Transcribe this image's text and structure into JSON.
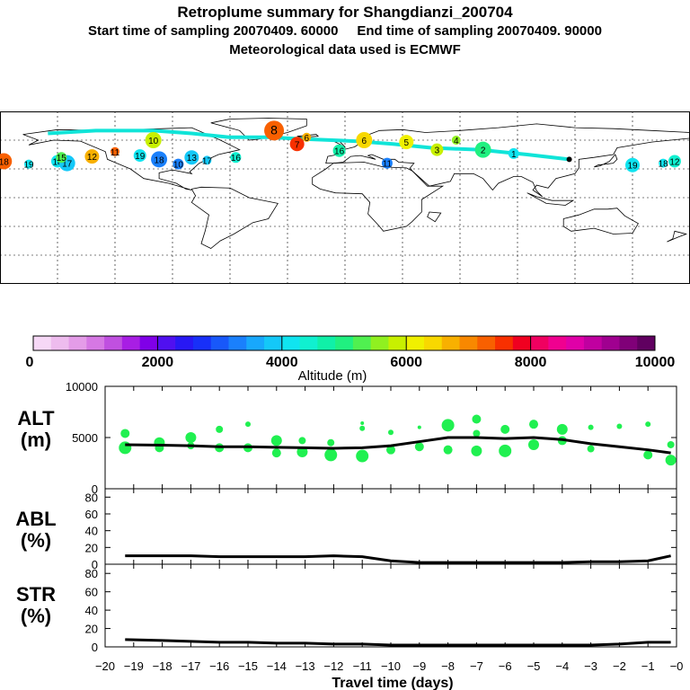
{
  "header": {
    "title": "Retroplume summary for Shangdianzi_200704",
    "subtitle": "Start time of sampling 20070409. 60000     End time of sampling 20070409. 90000",
    "met_line": "Meteorological data used is ECMWF"
  },
  "colorbar": {
    "tick_labels": [
      "0",
      "2000",
      "4000",
      "6000",
      "8000",
      "10000"
    ],
    "label": "Altitude (m)",
    "colors": [
      "#f6d8f6",
      "#eebcee",
      "#e49ce8",
      "#d678e4",
      "#c050e0",
      "#a81ee4",
      "#8000e8",
      "#5010f0",
      "#2818f4",
      "#1830f8",
      "#1858fa",
      "#1a80fc",
      "#18a8fc",
      "#14c8f8",
      "#10e4f0",
      "#10f0d0",
      "#10f0a8",
      "#20f080",
      "#50f050",
      "#90f020",
      "#c8f000",
      "#f0f000",
      "#f8d800",
      "#f8b000",
      "#f88800",
      "#f86000",
      "#f83000",
      "#f00020",
      "#f00060",
      "#f00090",
      "#e000a8",
      "#c000a0",
      "#a00090",
      "#800078",
      "#600060"
    ]
  },
  "panels": {
    "alt_label": "ALT\n(m)",
    "abl_label": "ABL\n(%)",
    "str_label": "STR\n(%)"
  },
  "chart_data": [
    {
      "type": "scatter",
      "title": "ALT",
      "ylabel": "ALT (m)",
      "ylim": [
        0,
        10000
      ],
      "yticks": [
        "10000",
        "5000",
        "0"
      ],
      "xlim": [
        -20,
        0
      ],
      "series": [
        {
          "name": "mean altitude",
          "x": [
            -19.3,
            -18,
            -17,
            -16,
            -15,
            -14,
            -13,
            -12,
            -11,
            -10,
            -9,
            -8,
            -7,
            -6,
            -5,
            -4,
            -3,
            -2,
            -1,
            -0.2
          ],
          "y": [
            4300,
            4250,
            4200,
            4100,
            4100,
            4050,
            4000,
            3950,
            4000,
            4200,
            4600,
            5000,
            5000,
            4900,
            5000,
            4800,
            4400,
            4100,
            3800,
            3500
          ]
        },
        {
          "name": "plume clusters",
          "x": [
            -19.3,
            -19.3,
            -18.1,
            -18.1,
            -17,
            -17,
            -16,
            -16,
            -15,
            -15,
            -14,
            -14,
            -13.1,
            -13.1,
            -12.1,
            -12.1,
            -11,
            -11,
            -11,
            -10,
            -10,
            -9,
            -9,
            -8,
            -8,
            -7,
            -7,
            -7,
            -6,
            -6,
            -5,
            -5,
            -4,
            -4,
            -3,
            -3,
            -2,
            -1,
            -1,
            -0.2,
            -0.2
          ],
          "y": [
            4000,
            5400,
            4500,
            4000,
            5000,
            4200,
            5800,
            4000,
            4000,
            6300,
            4700,
            3500,
            3600,
            4700,
            3300,
            4500,
            3200,
            5900,
            6400,
            3800,
            5500,
            6000,
            4100,
            6200,
            3800,
            6800,
            3700,
            5400,
            5800,
            3700,
            4300,
            6300,
            4700,
            5800,
            3900,
            6000,
            6100,
            3300,
            6300,
            2800,
            4300
          ],
          "sizes": [
            7,
            5,
            6,
            5,
            6,
            4,
            4,
            5,
            5,
            3,
            6,
            5,
            6,
            4,
            7,
            4,
            7,
            3,
            2,
            5,
            3,
            2,
            5,
            7,
            5,
            5,
            6,
            4,
            5,
            7,
            6,
            5,
            5,
            6,
            4,
            3,
            3,
            5,
            3,
            6,
            4
          ]
        }
      ]
    },
    {
      "type": "line",
      "title": "ABL",
      "ylabel": "ABL (%)",
      "ylim": [
        0,
        90
      ],
      "yticks": [
        "80",
        "60",
        "40",
        "20",
        "0"
      ],
      "xlim": [
        -20,
        0
      ],
      "x": [
        -19.3,
        -18,
        -17,
        -16,
        -15,
        -14,
        -13,
        -12,
        -11,
        -10,
        -9,
        -8,
        -7,
        -6,
        -5,
        -4,
        -3,
        -2,
        -1,
        -0.2
      ],
      "values": [
        10,
        10,
        10,
        9,
        9,
        9,
        9,
        10,
        9,
        4,
        2,
        2,
        2,
        2,
        2,
        2,
        3,
        3,
        4,
        10
      ]
    },
    {
      "type": "line",
      "title": "STR",
      "ylabel": "STR (%)",
      "ylim": [
        0,
        90
      ],
      "yticks": [
        "80",
        "60",
        "40",
        "20",
        "0"
      ],
      "xlim": [
        -20,
        0
      ],
      "xlabel": "Travel time (days)",
      "xticks": [
        "−20",
        "−19",
        "−18",
        "−17",
        "−16",
        "−15",
        "−14",
        "−13",
        "−12",
        "−11",
        "−10",
        "−9",
        "−8",
        "−7",
        "−6",
        "−5",
        "−4",
        "−3",
        "−2",
        "−1",
        "−0"
      ],
      "x": [
        -19.3,
        -18,
        -17,
        -16,
        -15,
        -14,
        -13,
        -12,
        -11,
        -10,
        -9,
        -8,
        -7,
        -6,
        -5,
        -4,
        -3,
        -2,
        -1,
        -0.2
      ],
      "values": [
        8,
        7,
        6,
        5,
        5,
        4,
        4,
        3,
        3,
        2,
        2,
        2,
        2,
        2,
        2,
        2,
        2,
        3,
        5,
        5
      ]
    }
  ],
  "map": {
    "trajectory_labels": [
      {
        "label": "19",
        "lon": -165,
        "lat": 35,
        "alt": 4200
      },
      {
        "label": "18",
        "lon": -150,
        "lat": 38,
        "alt": 4000
      },
      {
        "label": "17",
        "lon": -145,
        "lat": 36,
        "alt": 3800
      },
      {
        "label": "15",
        "lon": -148,
        "lat": 42,
        "alt": 5200
      },
      {
        "label": "12",
        "lon": -132,
        "lat": 43,
        "alt": 6600
      },
      {
        "label": "11",
        "lon": -120,
        "lat": 48,
        "alt": 7200
      },
      {
        "label": "19",
        "lon": -107,
        "lat": 44,
        "alt": 4100
      },
      {
        "label": "18",
        "lon": -97,
        "lat": 40,
        "alt": 3300
      },
      {
        "label": "10",
        "lon": -87,
        "lat": 35,
        "alt": 3200
      },
      {
        "label": "13",
        "lon": -80,
        "lat": 42,
        "alt": 3900
      },
      {
        "label": "17",
        "lon": -72,
        "lat": 39,
        "alt": 3800
      },
      {
        "label": "8",
        "lon": -37,
        "lat": 70,
        "alt": 7200
      },
      {
        "label": "10",
        "lon": -100,
        "lat": 60,
        "alt": 5800
      },
      {
        "label": "16",
        "lon": -57,
        "lat": 42,
        "alt": 4400
      },
      {
        "label": "7",
        "lon": -25,
        "lat": 56,
        "alt": 7500
      },
      {
        "label": "6",
        "lon": -20,
        "lat": 63,
        "alt": 6800
      },
      {
        "label": "16",
        "lon": -3,
        "lat": 49,
        "alt": 4600
      },
      {
        "label": "6",
        "lon": 10,
        "lat": 60,
        "alt": 6400
      },
      {
        "label": "11",
        "lon": 22,
        "lat": 36,
        "alt": 3300
      },
      {
        "label": "5",
        "lon": 32,
        "lat": 58,
        "alt": 6200
      },
      {
        "label": "4",
        "lon": 58,
        "lat": 60,
        "alt": 5600
      },
      {
        "label": "3",
        "lon": 48,
        "lat": 50,
        "alt": 5800
      },
      {
        "label": "2",
        "lon": 72,
        "lat": 50,
        "alt": 4900
      },
      {
        "label": "1",
        "lon": 88,
        "lat": 46,
        "alt": 4000
      },
      {
        "label": "19",
        "lon": 150,
        "lat": 34,
        "alt": 4200
      },
      {
        "label": "18",
        "lon": 166,
        "lat": 36,
        "alt": 4000
      },
      {
        "label": "12",
        "lon": 172,
        "lat": 38,
        "alt": 4400
      },
      {
        "label": "18",
        "lon": -178,
        "lat": 38,
        "alt": 7400
      }
    ]
  }
}
